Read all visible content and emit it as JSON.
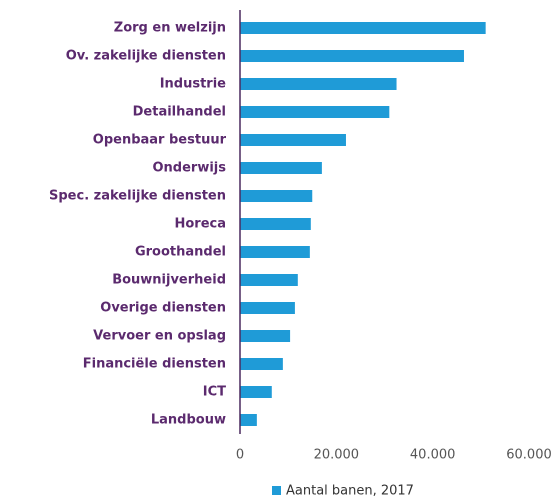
{
  "chart_data": {
    "type": "barh",
    "categories": [
      "Zorg en welzijn",
      "Ov. zakelijke diensten",
      "Industrie",
      "Detailhandel",
      "Openbaar bestuur",
      "Onderwijs",
      "Spec. zakelijke diensten",
      "Horeca",
      "Groothandel",
      "Bouwnijverheid",
      "Overige diensten",
      "Vervoer en opslag",
      "Financiële diensten",
      "ICT",
      "Landbouw"
    ],
    "series": [
      {
        "name": "Aantal banen, 2017",
        "color": "#1f9bd7",
        "values": [
          51000,
          46500,
          32500,
          31000,
          22000,
          17000,
          15000,
          14700,
          14500,
          12000,
          11400,
          10400,
          8900,
          6600,
          3500
        ]
      }
    ],
    "xlim": [
      0,
      60000
    ],
    "xticks": [
      0,
      {
        "value": 20000,
        "label": "20.000"
      },
      {
        "value": 40000,
        "label": "40.000"
      },
      {
        "value": 60000,
        "label": "60.000"
      }
    ],
    "grid": false,
    "legend": "bottom"
  }
}
